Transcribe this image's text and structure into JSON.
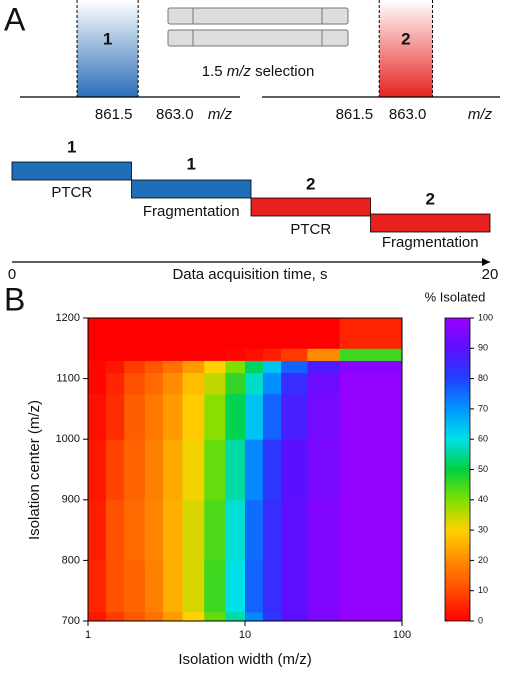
{
  "panel_a": {
    "label": "A",
    "selection_label": {
      "number": "1.5",
      "unit": "m/z",
      "word": "selection"
    },
    "spectra": [
      {
        "window_label": "1",
        "color": "#2a6fb9",
        "window": [
          860.6,
          862.1
        ],
        "xlim": [
          859.2,
          864.6
        ],
        "xticks": [
          861.5,
          {
            "value": 863.0,
            "label": "863.0"
          }
        ],
        "unit": "m/z"
      },
      {
        "window_label": "2",
        "color": "#e5231f",
        "window": [
          862.2,
          863.7
        ],
        "xlim": [
          858.9,
          865.6
        ],
        "xticks": [
          861.5,
          {
            "value": 863.0,
            "label": "863.0"
          }
        ],
        "unit": "m/z"
      }
    ],
    "steps": [
      {
        "number": "1",
        "label": "PTCR",
        "color": "#1f6fb8",
        "start": 0,
        "end": 5
      },
      {
        "number": "1",
        "label": "Fragmentation",
        "color": "#1f6fb8",
        "start": 5,
        "end": 10
      },
      {
        "number": "2",
        "label": "PTCR",
        "color": "#e8201f",
        "start": 10,
        "end": 15
      },
      {
        "number": "2",
        "label": "Fragmentation",
        "color": "#e8201f",
        "start": 15,
        "end": 20
      }
    ],
    "time_axis": {
      "label": "Data acquisition time, s",
      "xlim": [
        0,
        20
      ],
      "xticks": [
        0,
        20
      ]
    }
  },
  "chart_data": {
    "type": "heatmap",
    "panel_label": "B",
    "x_label": "Isolation width (m/z)",
    "y_label": "Isolation center (m/z)",
    "xscale": "log",
    "xlim": [
      1,
      100
    ],
    "xticks": [
      1,
      10,
      100
    ],
    "ylim": [
      700,
      1200
    ],
    "yticks": [
      700,
      800,
      900,
      1000,
      1100,
      1200
    ],
    "x_edges": [
      1,
      1.3,
      1.7,
      2.3,
      3,
      4,
      5.5,
      7.5,
      10,
      13,
      17,
      25,
      40,
      100
    ],
    "y_edges": [
      700,
      715,
      800,
      900,
      1000,
      1075,
      1110,
      1130,
      1150,
      1200
    ],
    "z": [
      [
        3,
        8,
        12,
        16,
        22,
        30,
        42,
        56,
        72,
        82,
        90,
        95,
        99
      ],
      [
        5,
        11,
        14,
        18,
        25,
        33,
        45,
        60,
        76,
        84,
        91,
        96,
        99
      ],
      [
        4,
        11,
        15,
        19,
        25,
        33,
        44,
        59,
        75,
        84,
        91,
        96,
        99
      ],
      [
        3,
        9,
        14,
        18,
        24,
        31,
        42,
        56,
        72,
        82,
        90,
        95,
        99
      ],
      [
        2,
        6,
        13,
        17,
        22,
        29,
        39,
        51,
        64,
        76,
        87,
        94,
        99
      ],
      [
        1,
        5,
        11,
        15,
        20,
        27,
        35,
        46,
        58,
        71,
        84,
        93,
        99
      ],
      [
        1,
        3,
        8,
        12,
        16,
        22,
        30,
        40,
        52,
        64,
        76,
        88,
        97
      ],
      [
        0,
        0,
        0,
        0,
        0,
        0,
        0,
        1,
        2,
        4,
        8,
        20,
        45
      ],
      [
        0,
        0,
        0,
        0,
        0,
        0,
        0,
        0,
        0,
        0,
        0,
        0,
        5
      ]
    ],
    "colorbar": {
      "title": "% Isolated",
      "lim": [
        0,
        100
      ],
      "ticks": [
        0,
        10,
        20,
        30,
        40,
        50,
        60,
        70,
        80,
        90,
        100
      ],
      "colors": [
        "#ff0000",
        "#ff4a00",
        "#ff8c00",
        "#ffd200",
        "#7ee000",
        "#00d040",
        "#00e0e8",
        "#0098ff",
        "#2040ff",
        "#5a10ff",
        "#9a00ff"
      ]
    }
  }
}
